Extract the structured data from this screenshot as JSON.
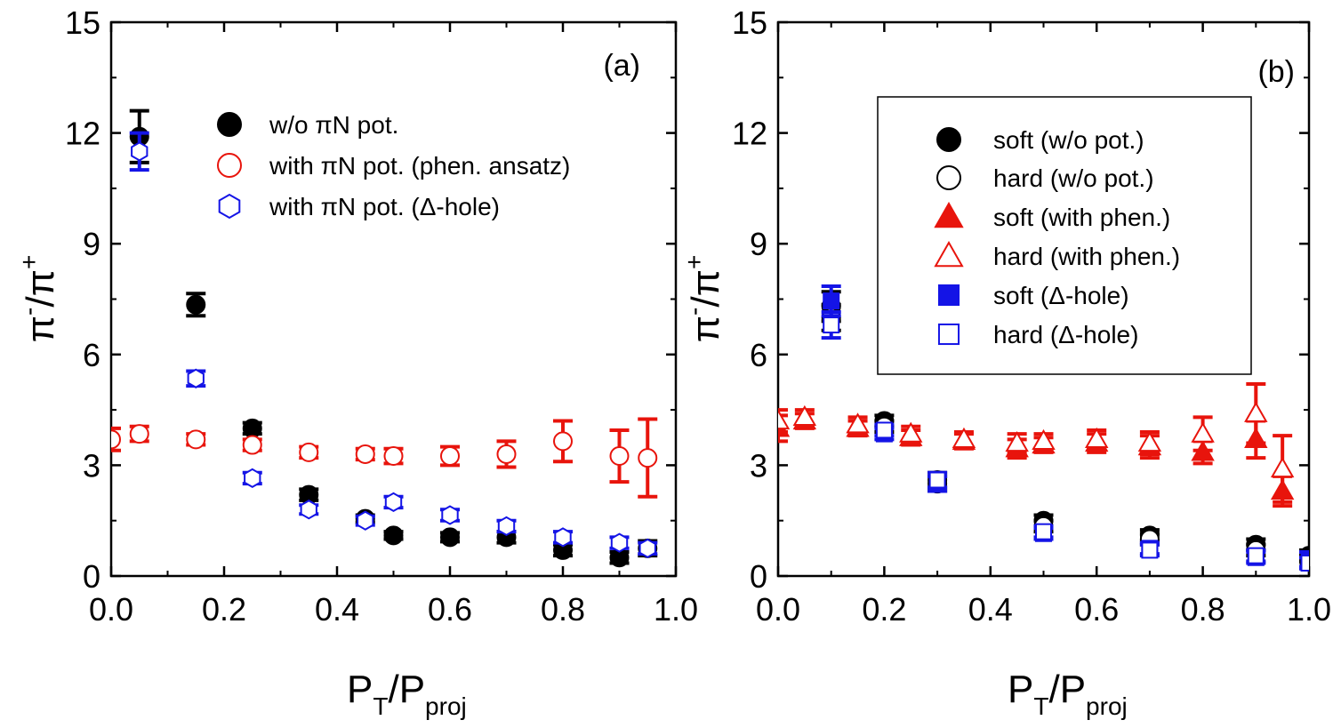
{
  "chart_data": [
    {
      "type": "scatter",
      "panel_label": "(a)",
      "xlabel": {
        "main": "P",
        "sub1": "T",
        "slash": "/P",
        "sub2": "proj"
      },
      "ylabel": {
        "main": "π",
        "sup1": "-",
        "slash": "/π",
        "sup2": "+"
      },
      "xlim": [
        0.0,
        1.0
      ],
      "ylim": [
        0,
        15
      ],
      "xticks": [
        "0.0",
        "0.2",
        "0.4",
        "0.6",
        "0.8",
        "1.0"
      ],
      "yticks": [
        "0",
        "3",
        "6",
        "9",
        "12",
        "15"
      ],
      "legend_position": "top-center",
      "legend_box": false,
      "series": [
        {
          "name": "w/o  πN pot.",
          "marker": "circle",
          "filled": true,
          "color": "#000000",
          "points": [
            {
              "x": 0.05,
              "y": 11.9,
              "err": 0.7
            },
            {
              "x": 0.15,
              "y": 7.35,
              "err": 0.3
            },
            {
              "x": 0.25,
              "y": 4.0,
              "err": 0.15
            },
            {
              "x": 0.35,
              "y": 2.2,
              "err": 0.15
            },
            {
              "x": 0.45,
              "y": 1.55,
              "err": 0.1
            },
            {
              "x": 0.5,
              "y": 1.1,
              "err": 0.1
            },
            {
              "x": 0.6,
              "y": 1.05,
              "err": 0.12
            },
            {
              "x": 0.7,
              "y": 1.05,
              "err": 0.15
            },
            {
              "x": 0.8,
              "y": 0.7,
              "err": 0.15
            },
            {
              "x": 0.9,
              "y": 0.5,
              "err": 0.15
            },
            {
              "x": 0.95,
              "y": 0.75,
              "err": 0.2
            }
          ]
        },
        {
          "name": "with πN pot. (phen. ansatz)",
          "marker": "circle",
          "filled": false,
          "color": "#e8140c",
          "points": [
            {
              "x": 0.0,
              "y": 3.7,
              "err": 0.3
            },
            {
              "x": 0.05,
              "y": 3.85,
              "err": 0.2
            },
            {
              "x": 0.15,
              "y": 3.7,
              "err": 0.15
            },
            {
              "x": 0.25,
              "y": 3.55,
              "err": 0.15
            },
            {
              "x": 0.35,
              "y": 3.35,
              "err": 0.15
            },
            {
              "x": 0.45,
              "y": 3.3,
              "err": 0.15
            },
            {
              "x": 0.5,
              "y": 3.25,
              "err": 0.2
            },
            {
              "x": 0.6,
              "y": 3.25,
              "err": 0.25
            },
            {
              "x": 0.7,
              "y": 3.3,
              "err": 0.35
            },
            {
              "x": 0.8,
              "y": 3.65,
              "err": 0.55
            },
            {
              "x": 0.9,
              "y": 3.25,
              "err": 0.7
            },
            {
              "x": 0.95,
              "y": 3.2,
              "err": 1.05
            }
          ]
        },
        {
          "name": "with πN pot. (Δ-hole)",
          "marker": "hexagon",
          "filled": false,
          "color": "#1414e6",
          "points": [
            {
              "x": 0.05,
              "y": 11.5,
              "err": 0.5
            },
            {
              "x": 0.15,
              "y": 5.35,
              "err": 0.2
            },
            {
              "x": 0.25,
              "y": 2.65,
              "err": 0.15
            },
            {
              "x": 0.35,
              "y": 1.8,
              "err": 0.12
            },
            {
              "x": 0.45,
              "y": 1.5,
              "err": 0.12
            },
            {
              "x": 0.5,
              "y": 2.0,
              "err": 0.15
            },
            {
              "x": 0.6,
              "y": 1.65,
              "err": 0.15
            },
            {
              "x": 0.7,
              "y": 1.35,
              "err": 0.15
            },
            {
              "x": 0.8,
              "y": 1.05,
              "err": 0.15
            },
            {
              "x": 0.9,
              "y": 0.9,
              "err": 0.15
            },
            {
              "x": 0.95,
              "y": 0.75,
              "err": 0.15
            }
          ]
        }
      ]
    },
    {
      "type": "scatter",
      "panel_label": "(b)",
      "xlabel": {
        "main": "P",
        "sub1": "T",
        "slash": "/P",
        "sub2": "proj"
      },
      "ylabel": {
        "main": "π",
        "sup1": "-",
        "slash": "/π",
        "sup2": "+"
      },
      "xlim": [
        0.0,
        1.0
      ],
      "ylim": [
        0,
        15
      ],
      "xticks": [
        "0.0",
        "0.2",
        "0.4",
        "0.6",
        "0.8",
        "1.0"
      ],
      "yticks": [
        "0",
        "3",
        "6",
        "9",
        "12",
        "15"
      ],
      "legend_position": "top-right",
      "legend_box": true,
      "series": [
        {
          "name": "soft (w/o pot.)",
          "marker": "circle",
          "filled": true,
          "color": "#000000",
          "points": [
            {
              "x": 0.1,
              "y": 7.3,
              "err": 0.4
            },
            {
              "x": 0.2,
              "y": 4.2,
              "err": 0.15
            },
            {
              "x": 0.3,
              "y": 2.6,
              "err": 0.2
            },
            {
              "x": 0.5,
              "y": 1.5,
              "err": 0.15
            },
            {
              "x": 0.7,
              "y": 1.1,
              "err": 0.15
            },
            {
              "x": 0.9,
              "y": 0.85,
              "err": 0.15
            },
            {
              "x": 1.0,
              "y": 0.55,
              "err": 0.15
            }
          ]
        },
        {
          "name": "hard (w/o pot.)",
          "marker": "circle",
          "filled": false,
          "color": "#000000",
          "points": [
            {
              "x": 0.1,
              "y": 7.0,
              "err": 0.35
            },
            {
              "x": 0.2,
              "y": 4.05,
              "err": 0.15
            },
            {
              "x": 0.3,
              "y": 2.5,
              "err": 0.2
            },
            {
              "x": 0.5,
              "y": 1.35,
              "err": 0.15
            },
            {
              "x": 0.7,
              "y": 1.0,
              "err": 0.15
            },
            {
              "x": 0.9,
              "y": 0.7,
              "err": 0.15
            },
            {
              "x": 1.0,
              "y": 0.4,
              "err": 0.15
            }
          ]
        },
        {
          "name": "soft (with phen.)",
          "marker": "triangle",
          "filled": true,
          "color": "#e8140c",
          "points": [
            {
              "x": 0.0,
              "y": 4.0,
              "err": 0.35
            },
            {
              "x": 0.05,
              "y": 4.2,
              "err": 0.2
            },
            {
              "x": 0.15,
              "y": 4.0,
              "err": 0.2
            },
            {
              "x": 0.25,
              "y": 3.75,
              "err": 0.2
            },
            {
              "x": 0.35,
              "y": 3.65,
              "err": 0.2
            },
            {
              "x": 0.45,
              "y": 3.45,
              "err": 0.25
            },
            {
              "x": 0.5,
              "y": 3.55,
              "err": 0.2
            },
            {
              "x": 0.6,
              "y": 3.6,
              "err": 0.25
            },
            {
              "x": 0.7,
              "y": 3.5,
              "err": 0.3
            },
            {
              "x": 0.8,
              "y": 3.35,
              "err": 0.3
            },
            {
              "x": 0.9,
              "y": 3.7,
              "err": 0.5
            },
            {
              "x": 0.95,
              "y": 2.3,
              "err": 0.4
            }
          ]
        },
        {
          "name": "hard (with phen.)",
          "marker": "triangle",
          "filled": false,
          "color": "#e8140c",
          "points": [
            {
              "x": 0.0,
              "y": 4.2,
              "err": 0.3
            },
            {
              "x": 0.05,
              "y": 4.3,
              "err": 0.2
            },
            {
              "x": 0.15,
              "y": 4.1,
              "err": 0.2
            },
            {
              "x": 0.25,
              "y": 3.85,
              "err": 0.2
            },
            {
              "x": 0.35,
              "y": 3.7,
              "err": 0.2
            },
            {
              "x": 0.45,
              "y": 3.6,
              "err": 0.25
            },
            {
              "x": 0.5,
              "y": 3.65,
              "err": 0.2
            },
            {
              "x": 0.6,
              "y": 3.7,
              "err": 0.25
            },
            {
              "x": 0.7,
              "y": 3.6,
              "err": 0.3
            },
            {
              "x": 0.8,
              "y": 3.85,
              "err": 0.45
            },
            {
              "x": 0.9,
              "y": 4.4,
              "err": 0.8
            },
            {
              "x": 0.95,
              "y": 2.9,
              "err": 0.9
            }
          ]
        },
        {
          "name": "soft (Δ-hole)",
          "marker": "square",
          "filled": true,
          "color": "#1414e6",
          "points": [
            {
              "x": 0.1,
              "y": 7.45,
              "err": 0.4
            },
            {
              "x": 0.2,
              "y": 3.85,
              "err": 0.15
            },
            {
              "x": 0.3,
              "y": 2.5,
              "err": 0.2
            },
            {
              "x": 0.5,
              "y": 1.15,
              "err": 0.15
            },
            {
              "x": 0.7,
              "y": 0.75,
              "err": 0.15
            },
            {
              "x": 0.9,
              "y": 0.5,
              "err": 0.15
            },
            {
              "x": 1.0,
              "y": 0.45,
              "err": 0.2
            }
          ]
        },
        {
          "name": "hard (Δ-hole)",
          "marker": "square",
          "filled": false,
          "color": "#1414e6",
          "points": [
            {
              "x": 0.1,
              "y": 6.8,
              "err": 0.35
            },
            {
              "x": 0.2,
              "y": 3.95,
              "err": 0.15
            },
            {
              "x": 0.3,
              "y": 2.6,
              "err": 0.2
            },
            {
              "x": 0.5,
              "y": 1.2,
              "err": 0.15
            },
            {
              "x": 0.7,
              "y": 0.7,
              "err": 0.15
            },
            {
              "x": 0.9,
              "y": 0.55,
              "err": 0.15
            },
            {
              "x": 1.0,
              "y": 0.35,
              "err": 0.15
            }
          ]
        }
      ]
    }
  ]
}
